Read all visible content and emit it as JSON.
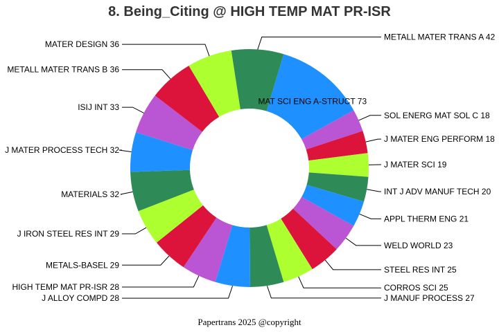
{
  "chart_data": {
    "type": "pie",
    "donut": true,
    "title": "8. Being_Citing @ HIGH TEMP MAT PR-ISR",
    "legend": "none",
    "slices": [
      {
        "label": "MAT SCI ENG A-STRUCT",
        "value": 73,
        "color": "#1E90FF"
      },
      {
        "label": "SOL ENERG MAT SOL C",
        "value": 18,
        "color": "#BA55D3"
      },
      {
        "label": "J MATER ENG PERFORM",
        "value": 18,
        "color": "#DC143C"
      },
      {
        "label": "J MATER SCI",
        "value": 19,
        "color": "#ADFF2F"
      },
      {
        "label": "INT J ADV MANUF TECH",
        "value": 20,
        "color": "#2E8B57"
      },
      {
        "label": "APPL THERM ENG",
        "value": 21,
        "color": "#1E90FF"
      },
      {
        "label": "WELD WORLD",
        "value": 23,
        "color": "#BA55D3"
      },
      {
        "label": "STEEL RES INT",
        "value": 25,
        "color": "#DC143C"
      },
      {
        "label": "CORROS SCI",
        "value": 25,
        "color": "#ADFF2F"
      },
      {
        "label": "J MANUF PROCESS",
        "value": 27,
        "color": "#2E8B57"
      },
      {
        "label": "J ALLOY COMPD",
        "value": 28,
        "color": "#1E90FF"
      },
      {
        "label": "HIGH TEMP MAT PR-ISR",
        "value": 28,
        "color": "#BA55D3"
      },
      {
        "label": "METALS-BASEL",
        "value": 29,
        "color": "#DC143C"
      },
      {
        "label": "J IRON STEEL RES INT",
        "value": 29,
        "color": "#ADFF2F"
      },
      {
        "label": "MATERIALS",
        "value": 32,
        "color": "#2E8B57"
      },
      {
        "label": "J MATER PROCESS TECH",
        "value": 32,
        "color": "#1E90FF"
      },
      {
        "label": "ISIJ INT",
        "value": 33,
        "color": "#BA55D3"
      },
      {
        "label": "METALL MATER TRANS B",
        "value": 36,
        "color": "#DC143C"
      },
      {
        "label": "MATER DESIGN",
        "value": 36,
        "color": "#ADFF2F"
      },
      {
        "label": "METALL MATER TRANS A",
        "value": 42,
        "color": "#2E8B57"
      }
    ]
  },
  "footer": "Papertrans 2025 @copyright"
}
